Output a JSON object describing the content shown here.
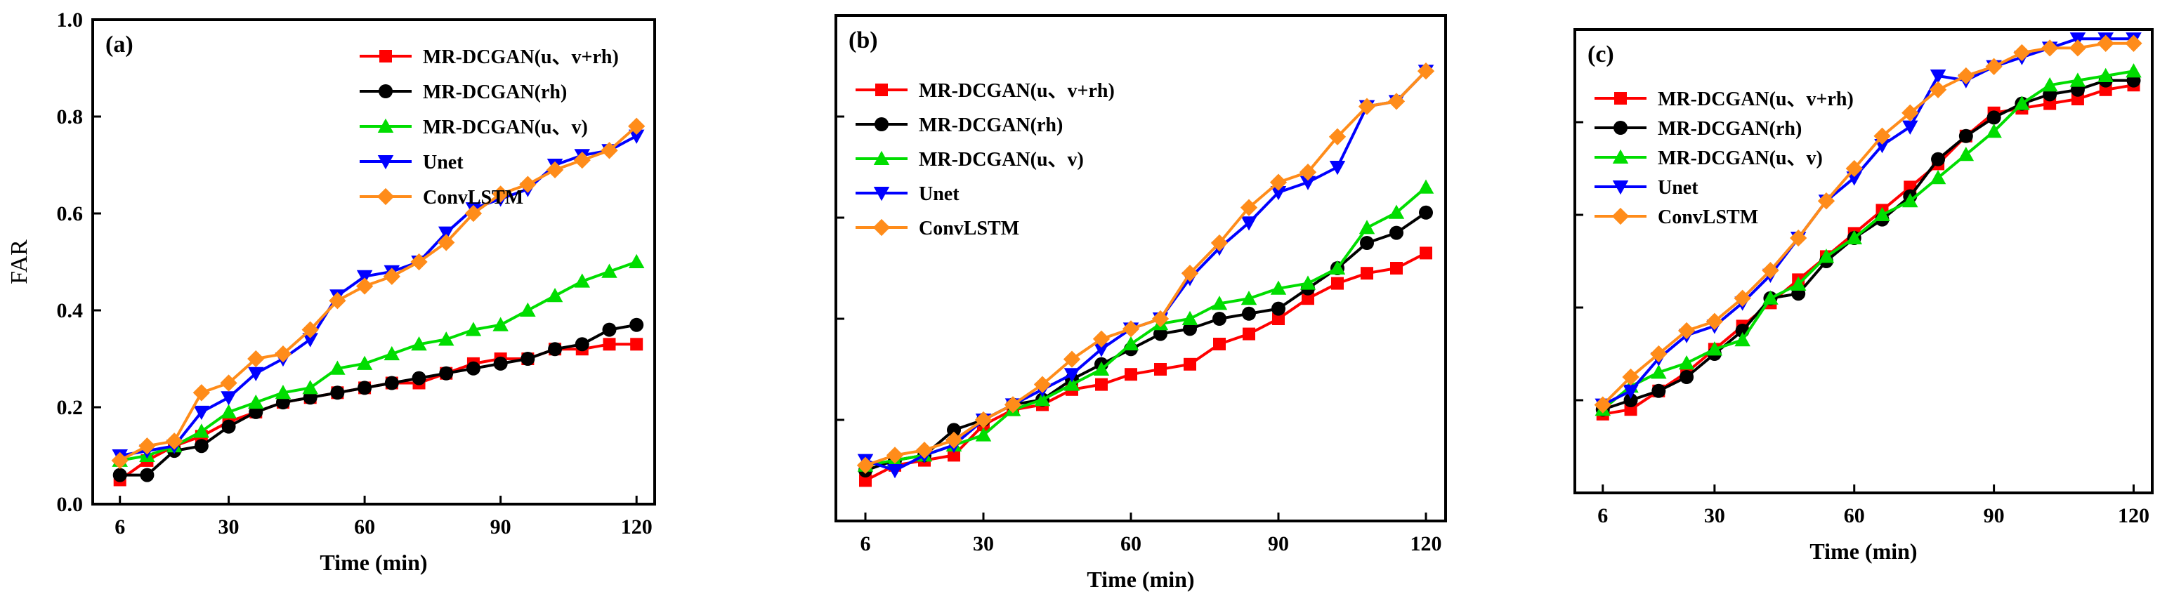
{
  "chart_data": [
    {
      "type": "line",
      "panel": "(a)",
      "ylabel": "FAR",
      "xlabel": "Time (min)",
      "xlim": [
        0,
        124
      ],
      "ylim": [
        0,
        1.0
      ],
      "xticks": [
        6,
        30,
        60,
        90,
        120
      ],
      "yticks": [
        0.0,
        0.2,
        0.4,
        0.6,
        0.8,
        1.0
      ],
      "ytick_labels": [
        "0.0",
        "0.2",
        "0.4",
        "0.6",
        "0.8",
        "1.0"
      ],
      "show_ytick_labels": true,
      "legend_position": "top-right",
      "x": [
        6,
        12,
        18,
        24,
        30,
        36,
        42,
        48,
        54,
        60,
        66,
        72,
        78,
        84,
        90,
        96,
        102,
        108,
        114,
        120
      ],
      "series": [
        {
          "name": "MR-DCGAN(u、v+rh)",
          "color": "#ff0000",
          "marker": "square",
          "values": [
            0.05,
            0.09,
            0.12,
            0.14,
            0.17,
            0.19,
            0.21,
            0.22,
            0.23,
            0.24,
            0.25,
            0.25,
            0.27,
            0.29,
            0.3,
            0.3,
            0.32,
            0.32,
            0.33,
            0.33
          ]
        },
        {
          "name": "MR-DCGAN(rh)",
          "color": "#000000",
          "marker": "circle",
          "values": [
            0.06,
            0.06,
            0.11,
            0.12,
            0.16,
            0.19,
            0.21,
            0.22,
            0.23,
            0.24,
            0.25,
            0.26,
            0.27,
            0.28,
            0.29,
            0.3,
            0.32,
            0.33,
            0.36,
            0.37
          ]
        },
        {
          "name": "MR-DCGAN(u、v)",
          "color": "#00dd00",
          "marker": "triangle-up",
          "values": [
            0.09,
            0.1,
            0.12,
            0.15,
            0.19,
            0.21,
            0.23,
            0.24,
            0.28,
            0.29,
            0.31,
            0.33,
            0.34,
            0.36,
            0.37,
            0.4,
            0.43,
            0.46,
            0.48,
            0.5
          ]
        },
        {
          "name": "Unet",
          "color": "#0000ff",
          "marker": "triangle-down",
          "values": [
            0.1,
            0.11,
            0.12,
            0.19,
            0.22,
            0.27,
            0.3,
            0.34,
            0.43,
            0.47,
            0.48,
            0.5,
            0.56,
            0.61,
            0.63,
            0.65,
            0.7,
            0.72,
            0.73,
            0.76
          ]
        },
        {
          "name": "ConvLSTM",
          "color": "#ff8c1a",
          "marker": "diamond",
          "values": [
            0.09,
            0.12,
            0.13,
            0.23,
            0.25,
            0.3,
            0.31,
            0.36,
            0.42,
            0.45,
            0.47,
            0.5,
            0.54,
            0.6,
            0.64,
            0.66,
            0.69,
            0.71,
            0.73,
            0.78
          ]
        }
      ]
    },
    {
      "type": "line",
      "panel": "(b)",
      "ylabel": "",
      "xlabel": "Time (min)",
      "xlim": [
        0,
        124
      ],
      "ylim": [
        0,
        1.0
      ],
      "xticks": [
        6,
        30,
        60,
        90,
        120
      ],
      "yticks": [
        0.0,
        0.2,
        0.4,
        0.6,
        0.8,
        1.0
      ],
      "ytick_labels": [
        "",
        "",
        "",
        "",
        "",
        ""
      ],
      "show_ytick_labels": false,
      "legend_position": "top-left",
      "x": [
        6,
        12,
        18,
        24,
        30,
        36,
        42,
        48,
        54,
        60,
        66,
        72,
        78,
        84,
        90,
        96,
        102,
        108,
        114,
        120
      ],
      "series": [
        {
          "name": "MR-DCGAN(u、v+rh)",
          "color": "#ff0000",
          "marker": "square",
          "values": [
            0.08,
            0.11,
            0.12,
            0.13,
            0.19,
            0.22,
            0.23,
            0.26,
            0.27,
            0.29,
            0.3,
            0.31,
            0.35,
            0.37,
            0.4,
            0.44,
            0.47,
            0.49,
            0.5,
            0.53
          ]
        },
        {
          "name": "MR-DCGAN(rh)",
          "color": "#000000",
          "marker": "circle",
          "values": [
            0.1,
            0.12,
            0.13,
            0.18,
            0.2,
            0.23,
            0.24,
            0.28,
            0.31,
            0.34,
            0.37,
            0.38,
            0.4,
            0.41,
            0.42,
            0.46,
            0.5,
            0.55,
            0.57,
            0.61
          ]
        },
        {
          "name": "MR-DCGAN(u、v)",
          "color": "#00dd00",
          "marker": "triangle-up",
          "values": [
            0.11,
            0.12,
            0.13,
            0.15,
            0.17,
            0.22,
            0.24,
            0.27,
            0.3,
            0.35,
            0.39,
            0.4,
            0.43,
            0.44,
            0.46,
            0.47,
            0.5,
            0.58,
            0.61,
            0.66
          ]
        },
        {
          "name": "Unet",
          "color": "#0000ff",
          "marker": "triangle-down",
          "values": [
            0.12,
            0.1,
            0.13,
            0.15,
            0.2,
            0.23,
            0.26,
            0.29,
            0.34,
            0.38,
            0.4,
            0.48,
            0.54,
            0.59,
            0.65,
            0.67,
            0.7,
            0.82,
            0.83,
            0.89
          ]
        },
        {
          "name": "ConvLSTM",
          "color": "#ff8c1a",
          "marker": "diamond",
          "values": [
            0.11,
            0.13,
            0.14,
            0.16,
            0.2,
            0.23,
            0.27,
            0.32,
            0.36,
            0.38,
            0.4,
            0.49,
            0.55,
            0.62,
            0.67,
            0.69,
            0.76,
            0.82,
            0.83,
            0.89
          ]
        }
      ]
    },
    {
      "type": "line",
      "panel": "(c)",
      "ylabel": "",
      "xlabel": "Time (min)",
      "xlim": [
        0,
        124
      ],
      "ylim": [
        0,
        1.0
      ],
      "xticks": [
        6,
        30,
        60,
        90,
        120
      ],
      "yticks": [
        0.0,
        0.2,
        0.4,
        0.6,
        0.8,
        1.0
      ],
      "ytick_labels": [
        "",
        "",
        "",
        "",
        "",
        ""
      ],
      "show_ytick_labels": false,
      "legend_position": "top-left",
      "x": [
        6,
        12,
        18,
        24,
        30,
        36,
        42,
        48,
        54,
        60,
        66,
        72,
        78,
        84,
        90,
        96,
        102,
        108,
        114,
        120
      ],
      "series": [
        {
          "name": "MR-DCGAN(u、v+rh)",
          "color": "#ff0000",
          "marker": "square",
          "values": [
            0.17,
            0.18,
            0.22,
            0.26,
            0.31,
            0.36,
            0.41,
            0.46,
            0.51,
            0.56,
            0.61,
            0.66,
            0.71,
            0.77,
            0.82,
            0.83,
            0.84,
            0.85,
            0.87,
            0.88
          ]
        },
        {
          "name": "MR-DCGAN(rh)",
          "color": "#000000",
          "marker": "circle",
          "values": [
            0.18,
            0.2,
            0.22,
            0.25,
            0.3,
            0.35,
            0.42,
            0.43,
            0.5,
            0.55,
            0.59,
            0.64,
            0.72,
            0.77,
            0.81,
            0.84,
            0.86,
            0.87,
            0.89,
            0.89
          ]
        },
        {
          "name": "MR-DCGAN(u、v)",
          "color": "#00dd00",
          "marker": "triangle-up",
          "values": [
            0.18,
            0.23,
            0.26,
            0.28,
            0.31,
            0.33,
            0.42,
            0.45,
            0.51,
            0.55,
            0.6,
            0.63,
            0.68,
            0.73,
            0.78,
            0.84,
            0.88,
            0.89,
            0.9,
            0.91
          ]
        },
        {
          "name": "Unet",
          "color": "#0000ff",
          "marker": "triangle-down",
          "values": [
            0.19,
            0.22,
            0.29,
            0.34,
            0.36,
            0.41,
            0.47,
            0.55,
            0.63,
            0.68,
            0.75,
            0.79,
            0.9,
            0.89,
            0.92,
            0.94,
            0.96,
            0.98,
            0.98,
            0.98
          ]
        },
        {
          "name": "ConvLSTM",
          "color": "#ff8c1a",
          "marker": "diamond",
          "values": [
            0.19,
            0.25,
            0.3,
            0.35,
            0.37,
            0.42,
            0.48,
            0.55,
            0.63,
            0.7,
            0.77,
            0.82,
            0.87,
            0.9,
            0.92,
            0.95,
            0.96,
            0.96,
            0.97,
            0.97
          ]
        }
      ]
    }
  ]
}
